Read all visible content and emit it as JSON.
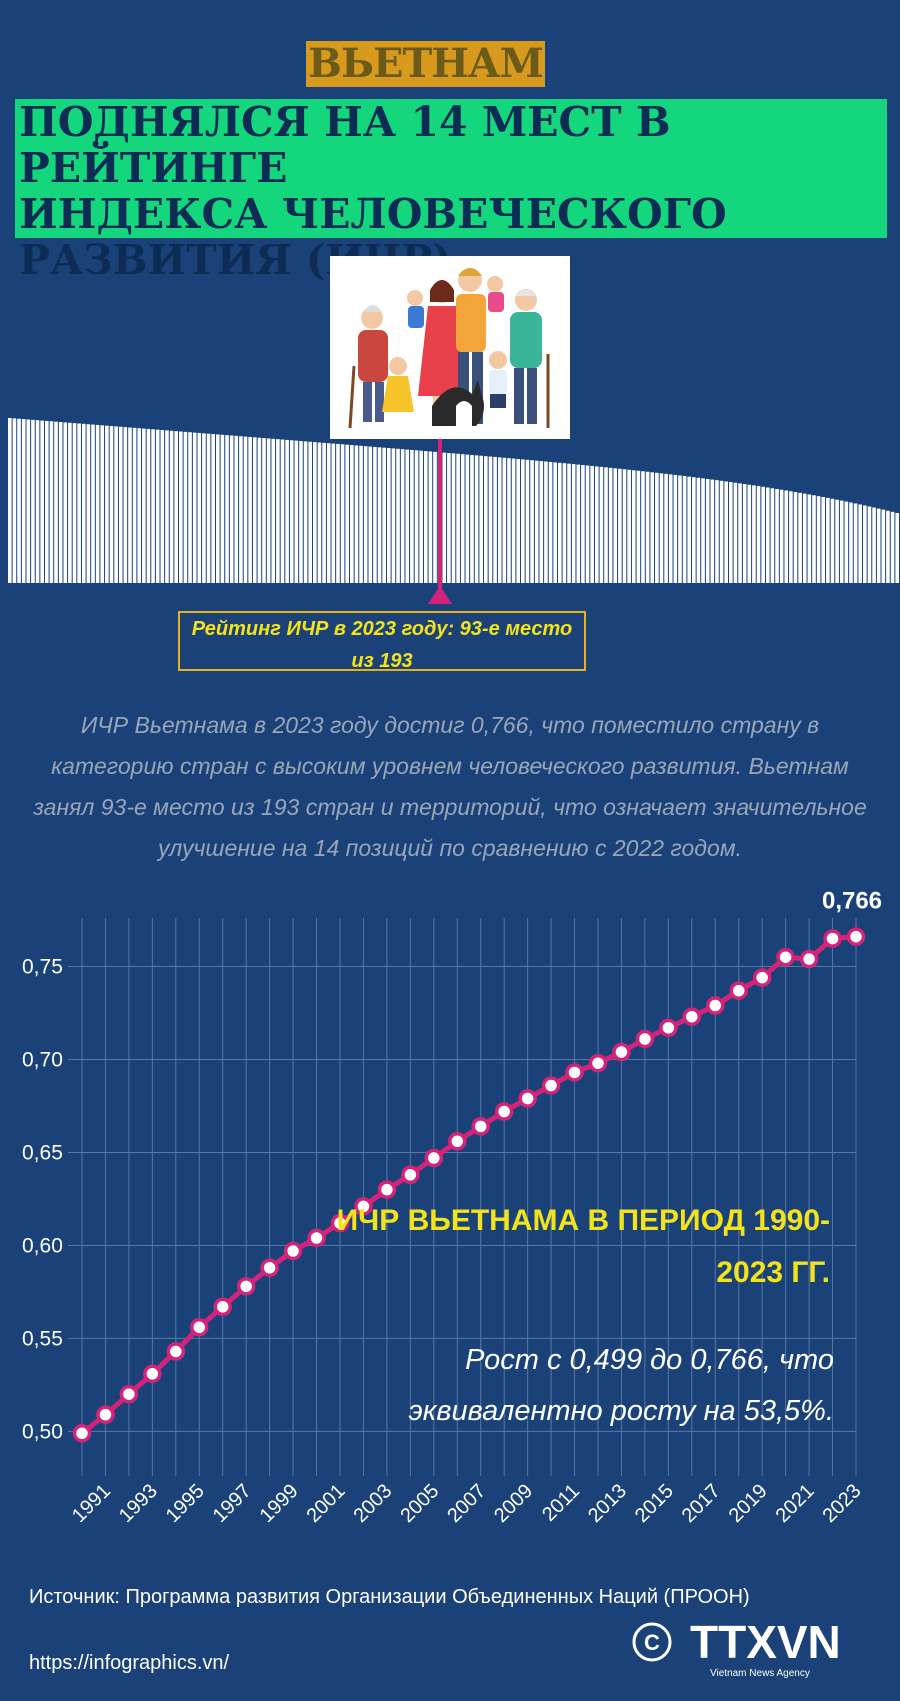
{
  "header": {
    "kicker": "ВЬЕТНАМ",
    "headline": "ПОДНЯЛСЯ НА 14 МЕСТ В РЕЙТИНГЕ\nИНДЕКСА ЧЕЛОВЕЧЕСКОГО\nРАЗВИТИЯ (ИЧР)"
  },
  "ranking": {
    "label": "Рейтинг ИЧР в 2023 году: 93-е место из 193",
    "rank": 93,
    "total": 193
  },
  "paragraph": "ИЧР Вьетнама в 2023 году достиг 0,766, что поместило страну в категорию стран с высоким уровнем человеческого развития. Вьетнам занял 93-е место из 193 стран и территорий, что означает значительное улучшение на 14 позиций по сравнению с 2022 годом.",
  "annotation": {
    "title": "ИЧР ВЬЕТНАМА В ПЕРИОД 1990-2023 ГГ.",
    "text": "Рост с 0,499 до 0,766, что эквивалентно росту на 53,5%."
  },
  "footer": {
    "source": "Источник: Программа развития Организации Объединенных Наций (ПРООН)",
    "url": "https://infographics.vn/",
    "logo_text": "TTXVN",
    "logo_subtext": "Vietnam News Agency"
  },
  "colors": {
    "background": "#1a4278",
    "headline_bg": "#14d67c",
    "kicker_bg": "#d79a1c",
    "accent_yellow": "#f4e21a",
    "line_color": "#d6237a"
  },
  "chart_data": {
    "type": "line",
    "x": [
      1990,
      1991,
      1992,
      1993,
      1994,
      1995,
      1996,
      1997,
      1998,
      1999,
      2000,
      2001,
      2002,
      2003,
      2004,
      2005,
      2006,
      2007,
      2008,
      2009,
      2010,
      2011,
      2012,
      2013,
      2014,
      2015,
      2016,
      2017,
      2018,
      2019,
      2020,
      2021,
      2022,
      2023
    ],
    "x_tick_labels": [
      "1991",
      "1993",
      "1995",
      "1997",
      "1999",
      "2001",
      "2003",
      "2005",
      "2007",
      "2009",
      "2011",
      "2013",
      "2015",
      "2017",
      "2019",
      "2021",
      "2023"
    ],
    "series": [
      {
        "values": [
          0.499,
          0.509,
          0.52,
          0.531,
          0.543,
          0.556,
          0.567,
          0.578,
          0.588,
          0.597,
          0.604,
          0.612,
          0.621,
          0.63,
          0.638,
          0.647,
          0.656,
          0.664,
          0.672,
          0.679,
          0.686,
          0.693,
          0.698,
          0.704,
          0.711,
          0.717,
          0.723,
          0.729,
          0.737,
          0.744,
          0.755,
          0.754,
          0.765,
          0.766
        ]
      }
    ],
    "y_tick_labels": [
      "0,50",
      "0,55",
      "0,60",
      "0,65",
      "0,70",
      "0,75"
    ],
    "ylim": [
      0.49,
      0.775
    ],
    "last_value_label": "0,766",
    "grid": true
  }
}
